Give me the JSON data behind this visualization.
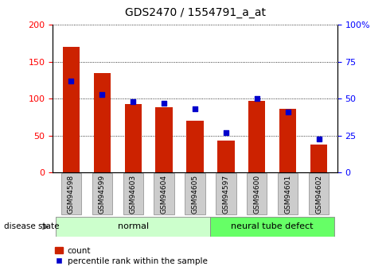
{
  "title": "GDS2470 / 1554791_a_at",
  "samples": [
    "GSM94598",
    "GSM94599",
    "GSM94603",
    "GSM94604",
    "GSM94605",
    "GSM94597",
    "GSM94600",
    "GSM94601",
    "GSM94602"
  ],
  "counts": [
    170,
    135,
    93,
    88,
    70,
    43,
    97,
    86,
    38
  ],
  "percentiles": [
    62,
    53,
    48,
    47,
    43,
    27,
    50,
    41,
    23
  ],
  "groups": [
    "normal",
    "normal",
    "normal",
    "normal",
    "normal",
    "neural tube defect",
    "neural tube defect",
    "neural tube defect",
    "neural tube defect"
  ],
  "bar_color": "#cc2200",
  "dot_color": "#0000cc",
  "left_ylim": [
    0,
    200
  ],
  "right_ylim": [
    0,
    100
  ],
  "left_yticks": [
    0,
    50,
    100,
    150,
    200
  ],
  "right_yticks": [
    0,
    25,
    50,
    75,
    100
  ],
  "right_yticklabels": [
    "0",
    "25",
    "50",
    "75",
    "100%"
  ],
  "normal_color": "#ccffcc",
  "defect_color": "#66ff66",
  "label_bg_color": "#cccccc",
  "grid_color": "#000000",
  "bar_width": 0.55
}
